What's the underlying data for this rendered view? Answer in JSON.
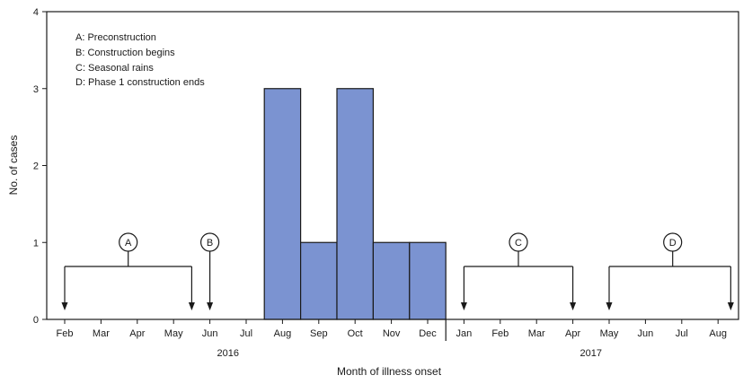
{
  "chart_data": {
    "type": "bar",
    "title": "",
    "xlabel": "Month of illness onset",
    "ylabel": "No. of cases",
    "ylim": [
      0,
      4
    ],
    "yticks": [
      0,
      1,
      2,
      3,
      4
    ],
    "grid": false,
    "months": [
      "Feb",
      "Mar",
      "Apr",
      "May",
      "Jun",
      "Jul",
      "Aug",
      "Sep",
      "Oct",
      "Nov",
      "Dec",
      "Jan",
      "Feb",
      "Mar",
      "Apr",
      "May",
      "Jun",
      "Jul",
      "Aug"
    ],
    "years": [
      {
        "label": "2016",
        "center_month": 4.5
      },
      {
        "label": "2017",
        "center_month": 14.5
      }
    ],
    "year_divider_after_month": 10,
    "bars": [
      {
        "month": "Aug",
        "index": 6,
        "value": 3
      },
      {
        "month": "Sep",
        "index": 7,
        "value": 1
      },
      {
        "month": "Oct",
        "index": 8,
        "value": 3
      },
      {
        "month": "Nov",
        "index": 9,
        "value": 1
      },
      {
        "month": "Dec",
        "index": 10,
        "value": 1
      }
    ],
    "bar_color": "#7b93d1",
    "legend": [
      "A: Preconstruction",
      "B: Construction begins",
      "C: Seasonal rains",
      "D: Phase 1 construction ends"
    ],
    "legend_position": "top-left",
    "periods": [
      {
        "letter": "A",
        "start": 0,
        "end": 3.5,
        "label_at": 1.75
      },
      {
        "letter": "B",
        "single": 4,
        "label_at": 4
      },
      {
        "letter": "C",
        "start": 11,
        "end": 14,
        "label_at": 12.5
      },
      {
        "letter": "D",
        "start": 15,
        "end": 18.35,
        "label_at": 16.75
      }
    ]
  }
}
